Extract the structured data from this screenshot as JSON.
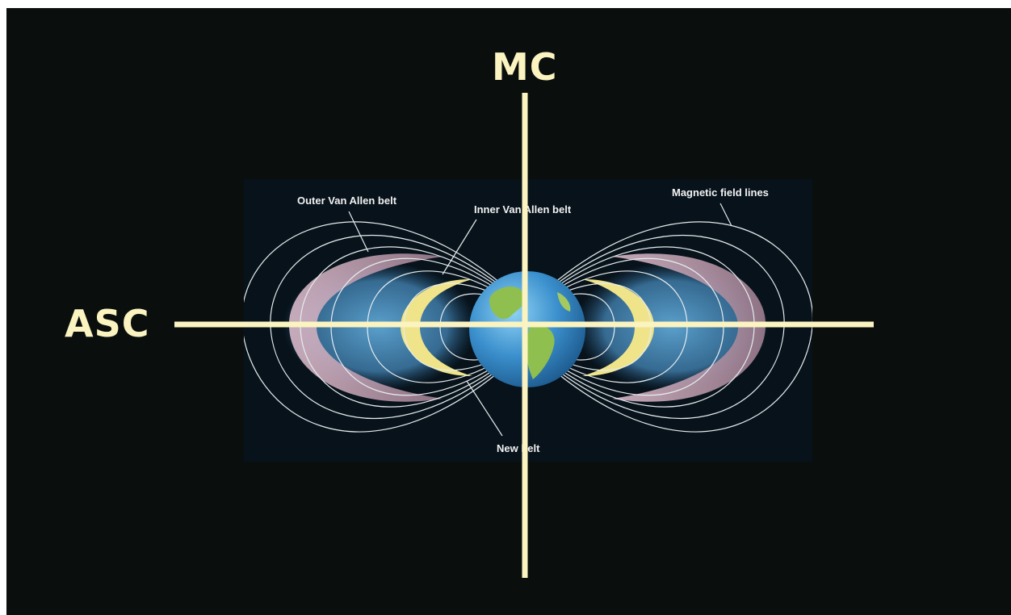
{
  "axes": {
    "vertical_label": "MC",
    "horizontal_label": "ASC",
    "line_color": "#fbf3c0"
  },
  "diagram": {
    "labels": {
      "outer_belt": "Outer Van Allen belt",
      "inner_belt": "Inner Van Allen belt",
      "field_lines": "Magnetic field lines",
      "new_belt": "New belt"
    },
    "colors": {
      "panel_background": "#07121a",
      "field_line": "#e6ecef",
      "outer_belt": "#c8a6b8",
      "inner_belt": "#efe48a",
      "belt_glow": "#5fa8d6",
      "earth_ocean": "#3a8fcc",
      "earth_land": "#8fbf4e"
    }
  }
}
